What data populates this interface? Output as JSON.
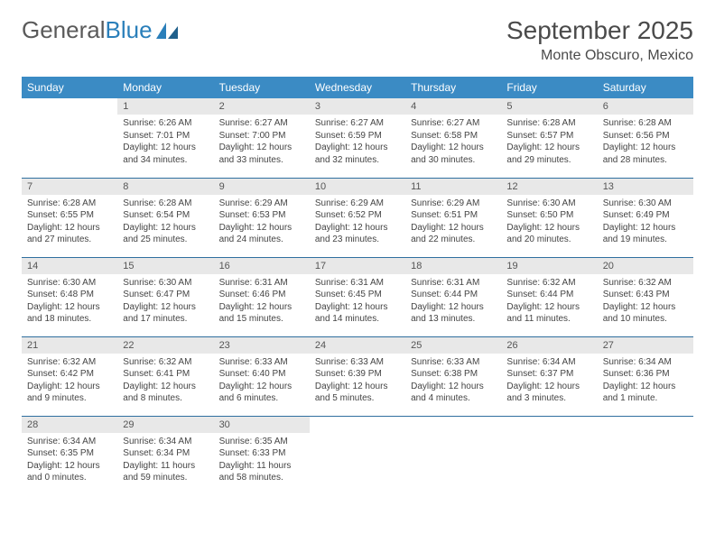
{
  "logo": {
    "text1": "General",
    "text2": "Blue"
  },
  "title": "September 2025",
  "location": "Monte Obscuro, Mexico",
  "colors": {
    "header_bg": "#3b8bc4",
    "header_text": "#ffffff",
    "daynum_bg": "#e8e8e8",
    "row_border": "#2f6f9f",
    "logo_gray": "#5a5a5a",
    "logo_blue": "#2a7fba"
  },
  "weekdays": [
    "Sunday",
    "Monday",
    "Tuesday",
    "Wednesday",
    "Thursday",
    "Friday",
    "Saturday"
  ],
  "cells": [
    [
      null,
      {
        "n": "1",
        "sr": "Sunrise: 6:26 AM",
        "ss": "Sunset: 7:01 PM",
        "d1": "Daylight: 12 hours",
        "d2": "and 34 minutes."
      },
      {
        "n": "2",
        "sr": "Sunrise: 6:27 AM",
        "ss": "Sunset: 7:00 PM",
        "d1": "Daylight: 12 hours",
        "d2": "and 33 minutes."
      },
      {
        "n": "3",
        "sr": "Sunrise: 6:27 AM",
        "ss": "Sunset: 6:59 PM",
        "d1": "Daylight: 12 hours",
        "d2": "and 32 minutes."
      },
      {
        "n": "4",
        "sr": "Sunrise: 6:27 AM",
        "ss": "Sunset: 6:58 PM",
        "d1": "Daylight: 12 hours",
        "d2": "and 30 minutes."
      },
      {
        "n": "5",
        "sr": "Sunrise: 6:28 AM",
        "ss": "Sunset: 6:57 PM",
        "d1": "Daylight: 12 hours",
        "d2": "and 29 minutes."
      },
      {
        "n": "6",
        "sr": "Sunrise: 6:28 AM",
        "ss": "Sunset: 6:56 PM",
        "d1": "Daylight: 12 hours",
        "d2": "and 28 minutes."
      }
    ],
    [
      {
        "n": "7",
        "sr": "Sunrise: 6:28 AM",
        "ss": "Sunset: 6:55 PM",
        "d1": "Daylight: 12 hours",
        "d2": "and 27 minutes."
      },
      {
        "n": "8",
        "sr": "Sunrise: 6:28 AM",
        "ss": "Sunset: 6:54 PM",
        "d1": "Daylight: 12 hours",
        "d2": "and 25 minutes."
      },
      {
        "n": "9",
        "sr": "Sunrise: 6:29 AM",
        "ss": "Sunset: 6:53 PM",
        "d1": "Daylight: 12 hours",
        "d2": "and 24 minutes."
      },
      {
        "n": "10",
        "sr": "Sunrise: 6:29 AM",
        "ss": "Sunset: 6:52 PM",
        "d1": "Daylight: 12 hours",
        "d2": "and 23 minutes."
      },
      {
        "n": "11",
        "sr": "Sunrise: 6:29 AM",
        "ss": "Sunset: 6:51 PM",
        "d1": "Daylight: 12 hours",
        "d2": "and 22 minutes."
      },
      {
        "n": "12",
        "sr": "Sunrise: 6:30 AM",
        "ss": "Sunset: 6:50 PM",
        "d1": "Daylight: 12 hours",
        "d2": "and 20 minutes."
      },
      {
        "n": "13",
        "sr": "Sunrise: 6:30 AM",
        "ss": "Sunset: 6:49 PM",
        "d1": "Daylight: 12 hours",
        "d2": "and 19 minutes."
      }
    ],
    [
      {
        "n": "14",
        "sr": "Sunrise: 6:30 AM",
        "ss": "Sunset: 6:48 PM",
        "d1": "Daylight: 12 hours",
        "d2": "and 18 minutes."
      },
      {
        "n": "15",
        "sr": "Sunrise: 6:30 AM",
        "ss": "Sunset: 6:47 PM",
        "d1": "Daylight: 12 hours",
        "d2": "and 17 minutes."
      },
      {
        "n": "16",
        "sr": "Sunrise: 6:31 AM",
        "ss": "Sunset: 6:46 PM",
        "d1": "Daylight: 12 hours",
        "d2": "and 15 minutes."
      },
      {
        "n": "17",
        "sr": "Sunrise: 6:31 AM",
        "ss": "Sunset: 6:45 PM",
        "d1": "Daylight: 12 hours",
        "d2": "and 14 minutes."
      },
      {
        "n": "18",
        "sr": "Sunrise: 6:31 AM",
        "ss": "Sunset: 6:44 PM",
        "d1": "Daylight: 12 hours",
        "d2": "and 13 minutes."
      },
      {
        "n": "19",
        "sr": "Sunrise: 6:32 AM",
        "ss": "Sunset: 6:44 PM",
        "d1": "Daylight: 12 hours",
        "d2": "and 11 minutes."
      },
      {
        "n": "20",
        "sr": "Sunrise: 6:32 AM",
        "ss": "Sunset: 6:43 PM",
        "d1": "Daylight: 12 hours",
        "d2": "and 10 minutes."
      }
    ],
    [
      {
        "n": "21",
        "sr": "Sunrise: 6:32 AM",
        "ss": "Sunset: 6:42 PM",
        "d1": "Daylight: 12 hours",
        "d2": "and 9 minutes."
      },
      {
        "n": "22",
        "sr": "Sunrise: 6:32 AM",
        "ss": "Sunset: 6:41 PM",
        "d1": "Daylight: 12 hours",
        "d2": "and 8 minutes."
      },
      {
        "n": "23",
        "sr": "Sunrise: 6:33 AM",
        "ss": "Sunset: 6:40 PM",
        "d1": "Daylight: 12 hours",
        "d2": "and 6 minutes."
      },
      {
        "n": "24",
        "sr": "Sunrise: 6:33 AM",
        "ss": "Sunset: 6:39 PM",
        "d1": "Daylight: 12 hours",
        "d2": "and 5 minutes."
      },
      {
        "n": "25",
        "sr": "Sunrise: 6:33 AM",
        "ss": "Sunset: 6:38 PM",
        "d1": "Daylight: 12 hours",
        "d2": "and 4 minutes."
      },
      {
        "n": "26",
        "sr": "Sunrise: 6:34 AM",
        "ss": "Sunset: 6:37 PM",
        "d1": "Daylight: 12 hours",
        "d2": "and 3 minutes."
      },
      {
        "n": "27",
        "sr": "Sunrise: 6:34 AM",
        "ss": "Sunset: 6:36 PM",
        "d1": "Daylight: 12 hours",
        "d2": "and 1 minute."
      }
    ],
    [
      {
        "n": "28",
        "sr": "Sunrise: 6:34 AM",
        "ss": "Sunset: 6:35 PM",
        "d1": "Daylight: 12 hours",
        "d2": "and 0 minutes."
      },
      {
        "n": "29",
        "sr": "Sunrise: 6:34 AM",
        "ss": "Sunset: 6:34 PM",
        "d1": "Daylight: 11 hours",
        "d2": "and 59 minutes."
      },
      {
        "n": "30",
        "sr": "Sunrise: 6:35 AM",
        "ss": "Sunset: 6:33 PM",
        "d1": "Daylight: 11 hours",
        "d2": "and 58 minutes."
      },
      null,
      null,
      null,
      null
    ]
  ]
}
